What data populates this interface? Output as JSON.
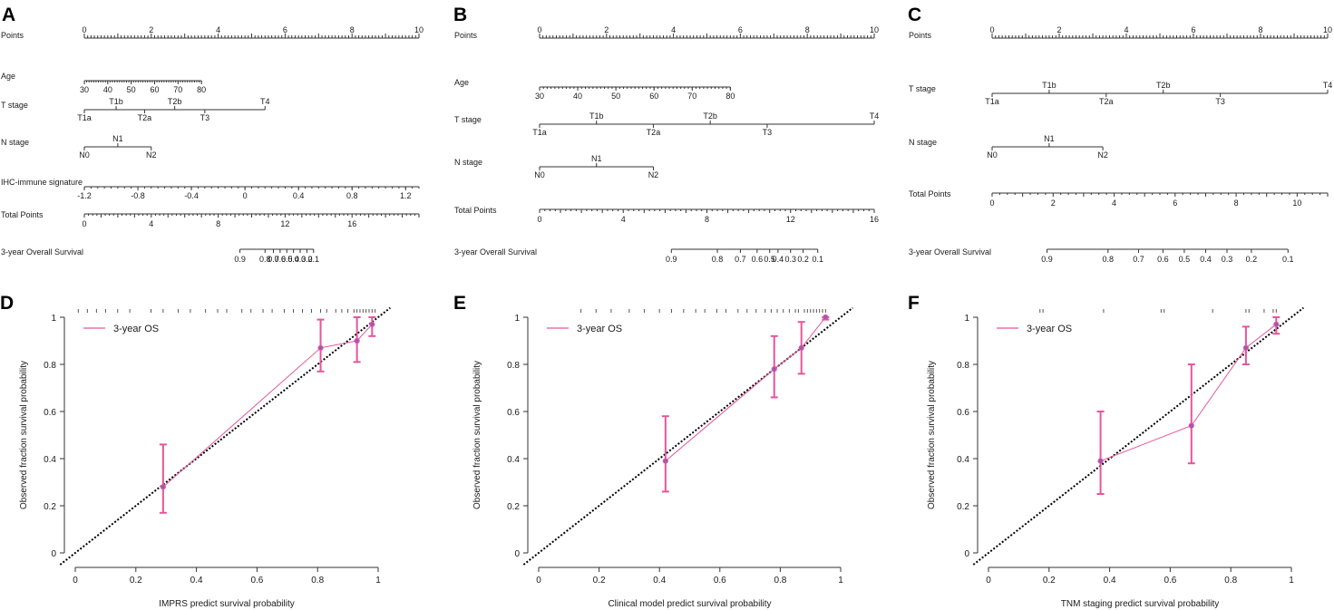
{
  "chart_data": [
    {
      "panel": "A",
      "type": "nomogram",
      "rows": [
        {
          "label": "Points",
          "ticks": [
            {
              "v": 0,
              "t": "0"
            },
            {
              "v": 2,
              "t": "2"
            },
            {
              "v": 4,
              "t": "4"
            },
            {
              "v": 6,
              "t": "6"
            },
            {
              "v": 8,
              "t": "8"
            },
            {
              "v": 10,
              "t": "10"
            }
          ],
          "range": [
            0,
            10
          ],
          "minor": 0.1
        },
        {
          "label": "Age",
          "range": [
            30,
            80
          ],
          "points_range": [
            0,
            3.5
          ],
          "ticks": [
            {
              "v": 30,
              "t": "30"
            },
            {
              "v": 40,
              "t": "40"
            },
            {
              "v": 50,
              "t": "50"
            },
            {
              "v": 60,
              "t": "60"
            },
            {
              "v": 70,
              "t": "70"
            },
            {
              "v": 80,
              "t": "80"
            }
          ],
          "tick_side": "below"
        },
        {
          "label": "T stage",
          "categorical": true,
          "cats": [
            {
              "t": "T1a",
              "p": 0,
              "side": "below"
            },
            {
              "t": "T1b",
              "p": 0.95,
              "side": "above"
            },
            {
              "t": "T2a",
              "p": 1.8,
              "side": "below"
            },
            {
              "t": "T2b",
              "p": 2.7,
              "side": "above"
            },
            {
              "t": "T3",
              "p": 3.6,
              "side": "below"
            },
            {
              "t": "T4",
              "p": 5.4,
              "side": "above"
            }
          ]
        },
        {
          "label": "N stage",
          "categorical": true,
          "cats": [
            {
              "t": "N0",
              "p": 0,
              "side": "below"
            },
            {
              "t": "N1",
              "p": 1,
              "side": "above"
            },
            {
              "t": "N2",
              "p": 2,
              "side": "below"
            }
          ]
        },
        {
          "label": "IHC-immune signature",
          "range": [
            -1.2,
            1.3
          ],
          "points_range": [
            0,
            10
          ],
          "ticks": [
            {
              "v": -1.2,
              "t": "-1.2"
            },
            {
              "v": -0.8,
              "t": "-0.8"
            },
            {
              "v": -0.4,
              "t": "-0.4"
            },
            {
              "v": 0,
              "t": "0"
            },
            {
              "v": 0.4,
              "t": "0.4"
            },
            {
              "v": 0.8,
              "t": "0.8"
            },
            {
              "v": 1.2,
              "t": "1.2"
            }
          ],
          "tick_side": "below"
        },
        {
          "label": "Total Points",
          "range": [
            0,
            20
          ],
          "ticks": [
            {
              "v": 0,
              "t": "0"
            },
            {
              "v": 4,
              "t": "4"
            },
            {
              "v": 8,
              "t": "8"
            },
            {
              "v": 12,
              "t": "12"
            },
            {
              "v": 16,
              "t": "16"
            }
          ],
          "tick_side": "below",
          "is_total": true
        },
        {
          "label": "3-year Overall Survival",
          "survival": true,
          "ticks": [
            {
              "p": 9.3,
              "t": "0.9"
            },
            {
              "p": 10.8,
              "t": "0.8"
            },
            {
              "p": 11.3,
              "t": "0.7"
            },
            {
              "p": 11.7,
              "t": "0.6"
            },
            {
              "p": 12.1,
              "t": "0.5"
            },
            {
              "p": 12.5,
              "t": "0.4"
            },
            {
              "p": 12.9,
              "t": "0.3"
            },
            {
              "p": 13.3,
              "t": "0.2"
            },
            {
              "p": 13.7,
              "t": "0.1"
            }
          ]
        }
      ]
    },
    {
      "panel": "B",
      "type": "nomogram",
      "rows": [
        {
          "label": "Points",
          "ticks": [
            {
              "v": 0,
              "t": "0"
            },
            {
              "v": 2,
              "t": "2"
            },
            {
              "v": 4,
              "t": "4"
            },
            {
              "v": 6,
              "t": "6"
            },
            {
              "v": 8,
              "t": "8"
            },
            {
              "v": 10,
              "t": "10"
            }
          ],
          "range": [
            0,
            10
          ],
          "minor": 0.1
        },
        {
          "label": "Age",
          "range": [
            30,
            80
          ],
          "points_range": [
            0,
            5.7
          ],
          "ticks": [
            {
              "v": 30,
              "t": "30"
            },
            {
              "v": 40,
              "t": "40"
            },
            {
              "v": 50,
              "t": "50"
            },
            {
              "v": 60,
              "t": "60"
            },
            {
              "v": 70,
              "t": "70"
            },
            {
              "v": 80,
              "t": "80"
            }
          ],
          "tick_side": "below"
        },
        {
          "label": "T stage",
          "categorical": true,
          "cats": [
            {
              "t": "T1a",
              "p": 0,
              "side": "below"
            },
            {
              "t": "T1b",
              "p": 1.7,
              "side": "above"
            },
            {
              "t": "T2a",
              "p": 3.4,
              "side": "below"
            },
            {
              "t": "T2b",
              "p": 5.1,
              "side": "above"
            },
            {
              "t": "T3",
              "p": 6.8,
              "side": "below"
            },
            {
              "t": "T4",
              "p": 10,
              "side": "above"
            }
          ]
        },
        {
          "label": "N stage",
          "categorical": true,
          "cats": [
            {
              "t": "N0",
              "p": 0,
              "side": "below"
            },
            {
              "t": "N1",
              "p": 1.7,
              "side": "above"
            },
            {
              "t": "N2",
              "p": 3.4,
              "side": "below"
            }
          ]
        },
        {
          "label": "Total Points",
          "range": [
            0,
            16
          ],
          "ticks": [
            {
              "v": 0,
              "t": "0"
            },
            {
              "v": 4,
              "t": "4"
            },
            {
              "v": 8,
              "t": "8"
            },
            {
              "v": 12,
              "t": "12"
            },
            {
              "v": 16,
              "t": "16"
            }
          ],
          "tick_side": "below",
          "is_total": true
        },
        {
          "label": "3-year Overall Survival",
          "survival": true,
          "ticks": [
            {
              "p": 6.3,
              "t": "0.9"
            },
            {
              "p": 8.5,
              "t": "0.8"
            },
            {
              "p": 9.6,
              "t": "0.7"
            },
            {
              "p": 10.4,
              "t": "0.6"
            },
            {
              "p": 11.0,
              "t": "0.5"
            },
            {
              "p": 11.4,
              "t": "0.4"
            },
            {
              "p": 12.0,
              "t": "0.3"
            },
            {
              "p": 12.6,
              "t": "0.2"
            },
            {
              "p": 13.3,
              "t": "0.1"
            }
          ],
          "total_max": 16
        }
      ]
    },
    {
      "panel": "C",
      "type": "nomogram",
      "rows": [
        {
          "label": "Points",
          "ticks": [
            {
              "v": 0,
              "t": "0"
            },
            {
              "v": 2,
              "t": "2"
            },
            {
              "v": 4,
              "t": "4"
            },
            {
              "v": 6,
              "t": "6"
            },
            {
              "v": 8,
              "t": "8"
            },
            {
              "v": 10,
              "t": "10"
            }
          ],
          "range": [
            0,
            10
          ],
          "minor": 0.1
        },
        {
          "label": "T stage",
          "categorical": true,
          "cats": [
            {
              "t": "T1a",
              "p": 0,
              "side": "below"
            },
            {
              "t": "T1b",
              "p": 1.7,
              "side": "above"
            },
            {
              "t": "T2a",
              "p": 3.4,
              "side": "below"
            },
            {
              "t": "T2b",
              "p": 5.1,
              "side": "above"
            },
            {
              "t": "T3",
              "p": 6.8,
              "side": "below"
            },
            {
              "t": "T4",
              "p": 10,
              "side": "above"
            }
          ]
        },
        {
          "label": "N stage",
          "categorical": true,
          "cats": [
            {
              "t": "N0",
              "p": 0,
              "side": "below"
            },
            {
              "t": "N1",
              "p": 1.7,
              "side": "above"
            },
            {
              "t": "N2",
              "p": 3.3,
              "side": "below"
            }
          ]
        },
        {
          "label": "Total Points",
          "range": [
            0,
            11
          ],
          "ticks": [
            {
              "v": 0,
              "t": "0"
            },
            {
              "v": 2,
              "t": "2"
            },
            {
              "v": 4,
              "t": "4"
            },
            {
              "v": 6,
              "t": "6"
            },
            {
              "v": 8,
              "t": "8"
            },
            {
              "v": 10,
              "t": "10"
            }
          ],
          "tick_side": "below",
          "is_total": true
        },
        {
          "label": "3-year Overall Survival",
          "survival": true,
          "ticks": [
            {
              "p": 1.8,
              "t": "0.9"
            },
            {
              "p": 3.8,
              "t": "0.8"
            },
            {
              "p": 4.8,
              "t": "0.7"
            },
            {
              "p": 5.6,
              "t": "0.6"
            },
            {
              "p": 6.3,
              "t": "0.5"
            },
            {
              "p": 7.0,
              "t": "0.4"
            },
            {
              "p": 7.7,
              "t": "0.3"
            },
            {
              "p": 8.5,
              "t": "0.2"
            },
            {
              "p": 9.7,
              "t": "0.1"
            }
          ],
          "total_max": 11
        }
      ]
    },
    {
      "panel": "D",
      "type": "line",
      "xlabel": "IMPRS predict survival probability",
      "ylabel": "Observed fraction survival probability",
      "xlim": [
        0,
        1
      ],
      "ylim": [
        0,
        1
      ],
      "xticks": [
        "0",
        "0.2",
        "0.4",
        "0.6",
        "0.8",
        "1"
      ],
      "yticks": [
        "0",
        "0.2",
        "0.4",
        "0.6",
        "0.8",
        "1"
      ],
      "legend": "3-year OS",
      "series": [
        {
          "name": "3-year OS",
          "x": [
            0.29,
            0.81,
            0.93,
            0.98
          ],
          "y": [
            0.28,
            0.87,
            0.9,
            0.97
          ],
          "lower": [
            0.17,
            0.77,
            0.81,
            0.92
          ],
          "upper": [
            0.46,
            0.99,
            1.0,
            1.0
          ]
        }
      ],
      "rug": [
        0.01,
        0.04,
        0.07,
        0.1,
        0.14,
        0.18,
        0.25,
        0.29,
        0.34,
        0.38,
        0.43,
        0.47,
        0.5,
        0.55,
        0.58,
        0.62,
        0.65,
        0.69,
        0.72,
        0.75,
        0.78,
        0.81,
        0.83,
        0.86,
        0.88,
        0.9,
        0.92,
        0.93,
        0.94,
        0.95,
        0.96,
        0.97,
        0.98,
        0.99
      ]
    },
    {
      "panel": "E",
      "type": "line",
      "xlabel": "Clinical model predict survival probability",
      "ylabel": "Observed fraction survival probability",
      "xlim": [
        0,
        1
      ],
      "ylim": [
        0,
        1
      ],
      "xticks": [
        "0",
        "0.2",
        "0.4",
        "0.6",
        "0.8",
        "1"
      ],
      "yticks": [
        "0",
        "0.2",
        "0.4",
        "0.6",
        "0.8",
        "1"
      ],
      "legend": "3-year OS",
      "series": [
        {
          "name": "3-year OS",
          "x": [
            0.42,
            0.78,
            0.87,
            0.95
          ],
          "y": [
            0.39,
            0.78,
            0.87,
            1.0
          ],
          "lower": [
            0.26,
            0.66,
            0.76,
            0.99
          ],
          "upper": [
            0.58,
            0.92,
            0.98,
            1.0
          ]
        }
      ],
      "rug": [
        0.14,
        0.19,
        0.24,
        0.3,
        0.35,
        0.4,
        0.44,
        0.48,
        0.52,
        0.55,
        0.59,
        0.62,
        0.66,
        0.69,
        0.72,
        0.75,
        0.77,
        0.79,
        0.81,
        0.83,
        0.85,
        0.86,
        0.88,
        0.89,
        0.9,
        0.91,
        0.92,
        0.93,
        0.94,
        0.95
      ]
    },
    {
      "panel": "F",
      "type": "line",
      "xlabel": "TNM staging predict survival probability",
      "ylabel": "Observed fraction survival probability",
      "xlim": [
        0,
        1
      ],
      "ylim": [
        0,
        1
      ],
      "xticks": [
        "0",
        "0.2",
        "0.4",
        "0.6",
        "0.8",
        "1"
      ],
      "yticks": [
        "0",
        "0.2",
        "0.4",
        "0.6",
        "0.8",
        "1"
      ],
      "legend": "3-year OS",
      "series": [
        {
          "name": "3-year OS",
          "x": [
            0.37,
            0.67,
            0.85,
            0.95
          ],
          "y": [
            0.39,
            0.54,
            0.87,
            0.97
          ],
          "lower": [
            0.25,
            0.38,
            0.8,
            0.93
          ],
          "upper": [
            0.6,
            0.8,
            0.96,
            1.0
          ]
        }
      ],
      "rug": [
        0.17,
        0.18,
        0.38,
        0.57,
        0.58,
        0.74,
        0.85,
        0.86,
        0.91,
        0.94,
        0.95
      ]
    }
  ],
  "labels": {
    "A": "A",
    "B": "B",
    "C": "C",
    "D": "D",
    "E": "E",
    "F": "F"
  },
  "colors": {
    "series": "#e6559a",
    "point": "#9b59b6",
    "axis": "#333333",
    "diagonal": "#000000"
  }
}
